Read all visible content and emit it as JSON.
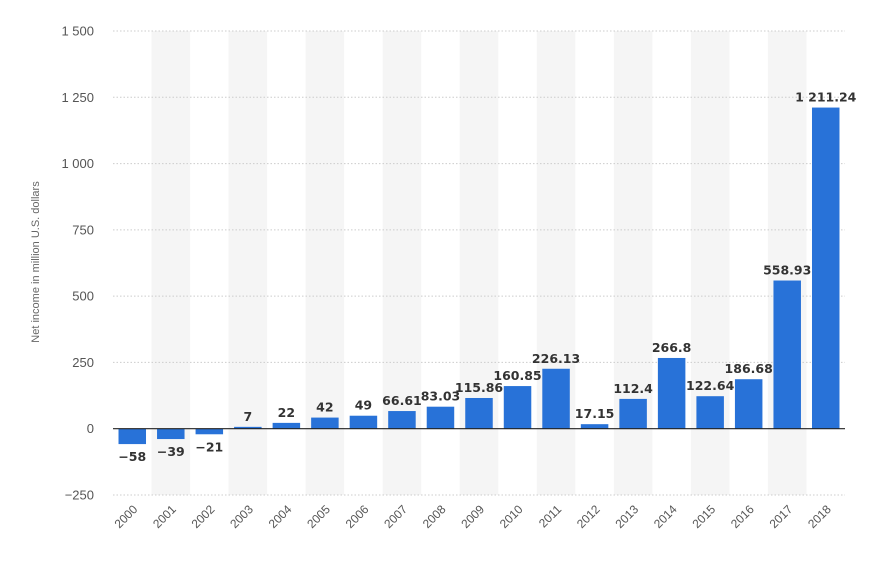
{
  "chart_data": {
    "type": "bar",
    "title": "",
    "xlabel": "",
    "ylabel": "Net income in million U.S. dollars",
    "categories": [
      "2000",
      "2001",
      "2002",
      "2003",
      "2004",
      "2005",
      "2006",
      "2007",
      "2008",
      "2009",
      "2010",
      "2011",
      "2012",
      "2013",
      "2014",
      "2015",
      "2016",
      "2017",
      "2018"
    ],
    "values": [
      -58,
      -39,
      -21,
      7,
      22,
      42,
      49,
      66.61,
      83.03,
      115.86,
      160.85,
      226.13,
      17.15,
      112.4,
      266.8,
      122.64,
      186.68,
      558.93,
      1211.24
    ],
    "data_labels": [
      "−58",
      "−39",
      "−21",
      "7",
      "22",
      "42",
      "49",
      "66.61",
      "83.03",
      "115.86",
      "160.85",
      "226.13",
      "17.15",
      "112.4",
      "266.8",
      "122.64",
      "186.68",
      "558.93",
      "1 211.24"
    ],
    "ylim": [
      -250,
      1500
    ],
    "yticks": [
      1500,
      1250,
      1000,
      750,
      500,
      250,
      0,
      -250
    ],
    "ytick_labels": [
      "1 500",
      "1 250",
      "1 000",
      "750",
      "500",
      "250",
      "0",
      "−250"
    ],
    "grid": true,
    "bar_color": "#2872d8",
    "stripe_color": "#f5f5f5",
    "grid_color": "#cccccc",
    "zero_line_color": "#222222"
  }
}
